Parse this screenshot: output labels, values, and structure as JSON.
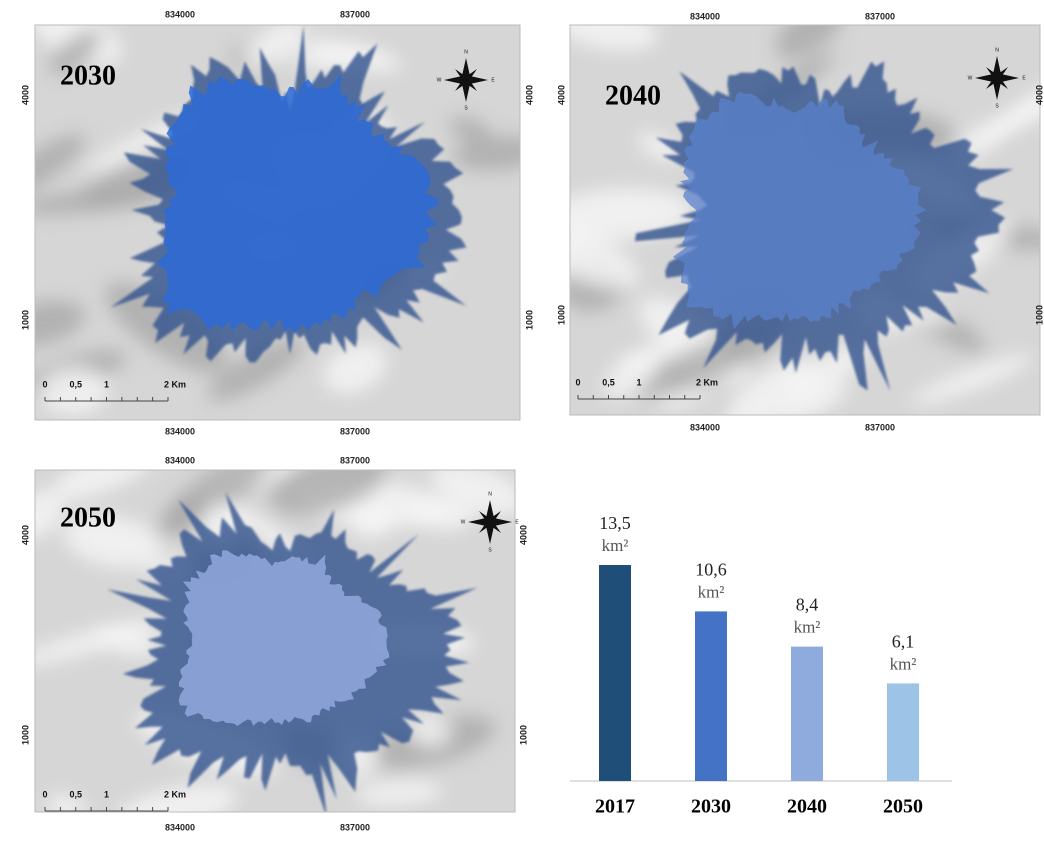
{
  "maps": [
    {
      "year": "2030",
      "x_labels": [
        "834000",
        "837000"
      ],
      "y_labels": [
        "4000",
        "1000"
      ],
      "scale_labels": [
        "0",
        "0,5",
        "1",
        "2 Km"
      ],
      "compass": [
        "N",
        "S",
        "E",
        "W"
      ]
    },
    {
      "year": "2040",
      "x_labels": [
        "834000",
        "837000"
      ],
      "y_labels": [
        "4000",
        "1000"
      ],
      "scale_labels": [
        "0",
        "0,5",
        "1",
        "2 Km"
      ],
      "compass": [
        "N",
        "S",
        "E",
        "W"
      ]
    },
    {
      "year": "2050",
      "x_labels": [
        "834000",
        "837000"
      ],
      "y_labels": [
        "4000",
        "1000"
      ],
      "scale_labels": [
        "0",
        "0,5",
        "1",
        "2 Km"
      ],
      "compass": [
        "N",
        "S",
        "E",
        "W"
      ]
    }
  ],
  "chart_data": {
    "type": "bar",
    "categories": [
      "2017",
      "2030",
      "2040",
      "2050"
    ],
    "values": [
      13.5,
      10.6,
      8.4,
      6.1
    ],
    "value_labels": [
      "13,5",
      "10,6",
      "8,4",
      "6,1"
    ],
    "unit": "km²",
    "colors": [
      "#1f4e79",
      "#4472c4",
      "#8faadc",
      "#9dc3e6"
    ]
  }
}
